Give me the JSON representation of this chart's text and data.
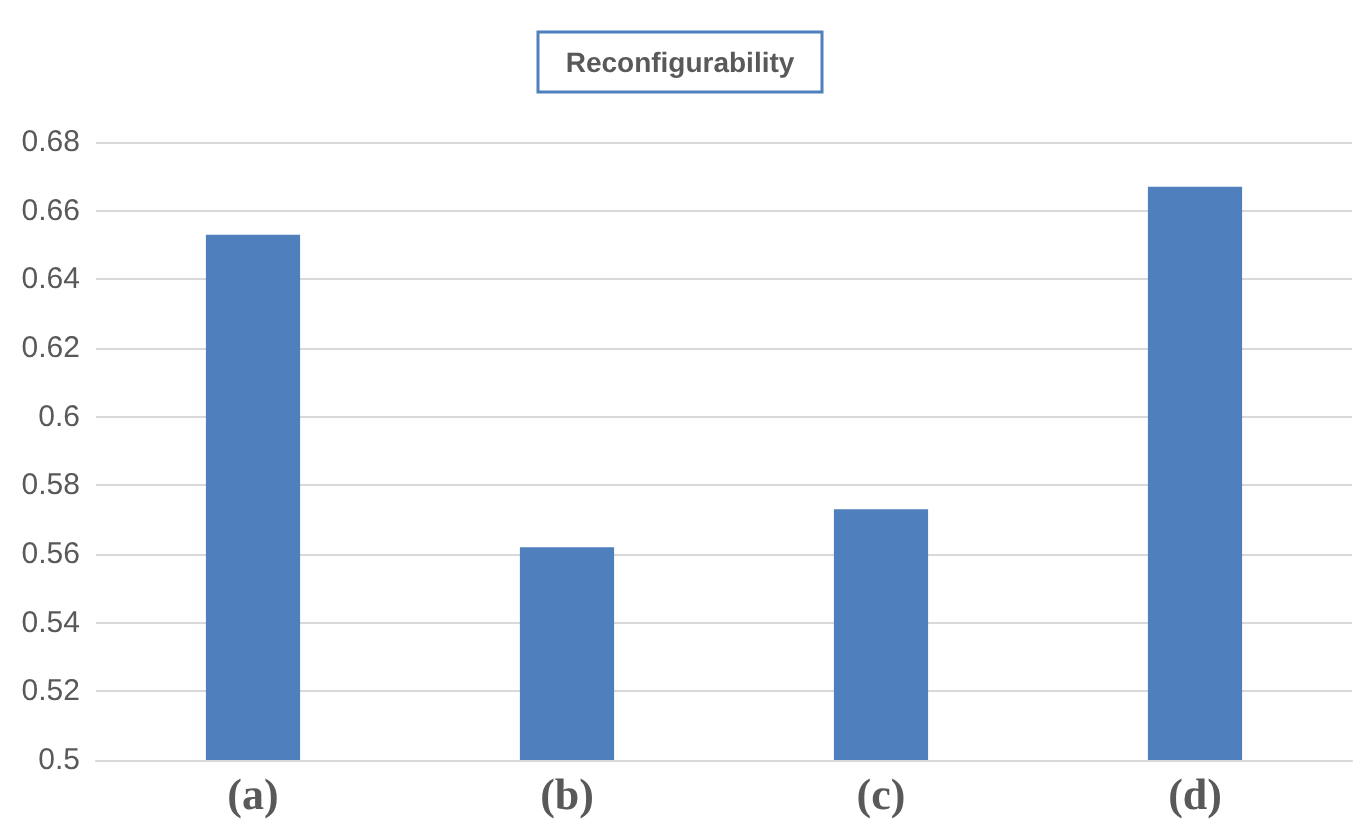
{
  "chart_data": {
    "type": "bar",
    "title": "Reconfigurability",
    "categories": [
      "(a)",
      "(b)",
      "(c)",
      "(d)"
    ],
    "values": [
      0.653,
      0.562,
      0.573,
      0.667
    ],
    "color": "#4f7fbc",
    "ylim": [
      0.5,
      0.68
    ],
    "yticks": [
      {
        "value": 0.5,
        "label": "0.5"
      },
      {
        "value": 0.52,
        "label": "0.52"
      },
      {
        "value": 0.54,
        "label": "0.54"
      },
      {
        "value": 0.56,
        "label": "0.56"
      },
      {
        "value": 0.58,
        "label": "0.58"
      },
      {
        "value": 0.6,
        "label": "0.6"
      },
      {
        "value": 0.62,
        "label": "0.62"
      },
      {
        "value": 0.64,
        "label": "0.64"
      },
      {
        "value": 0.66,
        "label": "0.66"
      },
      {
        "value": 0.68,
        "label": "0.68"
      }
    ],
    "grid": "y"
  }
}
